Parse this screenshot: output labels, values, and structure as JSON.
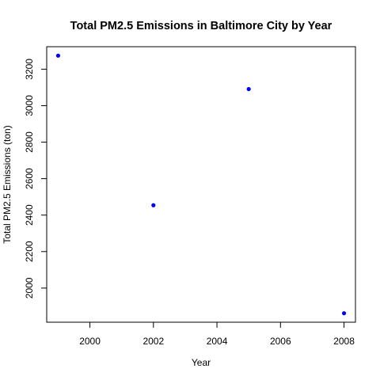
{
  "chart_data": {
    "type": "scatter",
    "title": "Total PM2.5 Emissions in Baltimore City by Year",
    "xlabel": "Year",
    "ylabel": "Total PM2.5 Emissions (ton)",
    "x": [
      1999,
      2002,
      2005,
      2008
    ],
    "y": [
      3274,
      2454,
      3091,
      1862
    ],
    "xlim": [
      1998.64,
      2008.36
    ],
    "ylim": [
      1812.8,
      3323.2
    ],
    "xticks": [
      2000,
      2002,
      2004,
      2006,
      2008
    ],
    "yticks": [
      2000,
      2200,
      2400,
      2600,
      2800,
      3000,
      3200
    ],
    "point_color": "#0000ff",
    "grid": false
  }
}
